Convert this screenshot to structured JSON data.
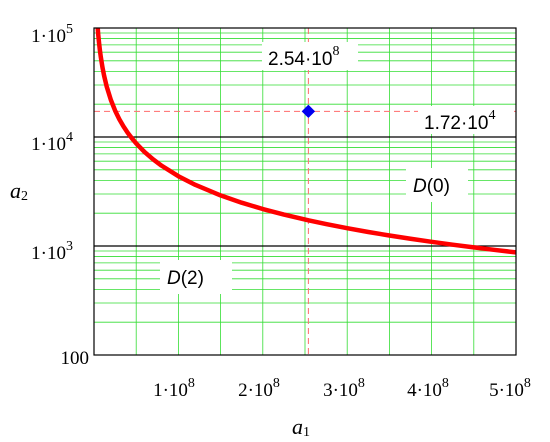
{
  "chart_data": {
    "type": "line",
    "x_scale": "linear",
    "y_scale": "log",
    "xlim": [
      0,
      500000000
    ],
    "ylim": [
      100,
      100000
    ],
    "grid": true,
    "xlabel": {
      "base": "a",
      "sub": "1"
    },
    "ylabel": {
      "base": "a",
      "sub": "2"
    },
    "x_ticks": [
      {
        "value": 100000000,
        "mant": "1·10",
        "exp": "8"
      },
      {
        "value": 200000000,
        "mant": "2·10",
        "exp": "8"
      },
      {
        "value": 300000000,
        "mant": "3·10",
        "exp": "8"
      },
      {
        "value": 400000000,
        "mant": "4·10",
        "exp": "8"
      },
      {
        "value": 500000000,
        "mant": "5·10",
        "exp": "8"
      }
    ],
    "y_ticks": [
      {
        "value": 100,
        "mant": "100",
        "exp": ""
      },
      {
        "value": 1000,
        "mant": "1·10",
        "exp": "3"
      },
      {
        "value": 10000,
        "mant": "1·10",
        "exp": "4"
      },
      {
        "value": 100000,
        "mant": "1·10",
        "exp": "5"
      }
    ],
    "series": [
      {
        "type": "curve",
        "color": "#ff0000",
        "x": [
          4000000,
          5000000,
          6000000,
          7000000,
          8000000,
          10000000,
          12000000,
          15000000,
          20000000,
          25000000,
          30000000,
          35000000,
          40000000,
          45000000,
          50000000,
          60000000,
          70000000,
          80000000,
          100000000,
          120000000,
          150000000,
          175000000,
          200000000,
          225000000,
          254000000,
          275000000,
          300000000,
          325000000,
          350000000,
          375000000,
          400000000,
          425000000,
          450000000,
          475000000,
          500000000
        ],
        "y": [
          109220,
          87376,
          72813,
          62411,
          54610,
          43688,
          36407,
          29125,
          21844,
          17475,
          14563,
          12482,
          10922,
          9708,
          8738,
          7281,
          6241,
          5461,
          4369,
          3641,
          2913,
          2496,
          2184,
          1942,
          1720,
          1589,
          1456,
          1344,
          1248,
          1165,
          1092,
          1028,
          971,
          920,
          874
        ]
      }
    ],
    "hlines": [
      {
        "y": 10000,
        "color": "#000000"
      },
      {
        "y": 1000,
        "color": "#000000"
      }
    ],
    "point": {
      "x": 254000000,
      "y": 17200,
      "color": "#0000ee",
      "marker": "diamond"
    },
    "crosshair_color": "#ff6b6b",
    "grid_color": "#33dd33",
    "annotations": {
      "point_x_label": {
        "mant": "2.54·10",
        "exp": "8"
      },
      "point_y_label": {
        "mant": "1.72·10",
        "exp": "4"
      }
    },
    "regions": [
      {
        "label": "D(0)",
        "name": "D",
        "arg": "(0)"
      },
      {
        "label": "D(2)",
        "name": "D",
        "arg": "(2)"
      }
    ]
  }
}
